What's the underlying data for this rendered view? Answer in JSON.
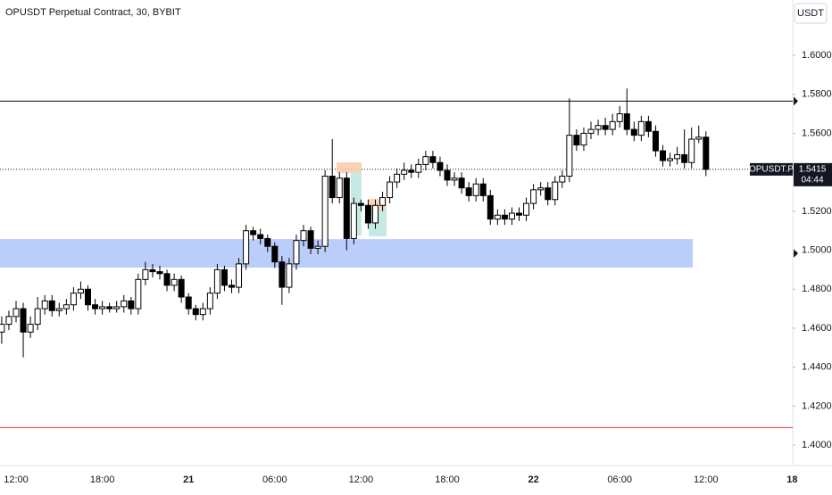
{
  "chart_data": {
    "type": "candlestick",
    "title": "OPUSDT Perpetual Contract, 30, BYBIT",
    "currency": "USDT",
    "symbol_label": "OPUSDT.P",
    "countdown": "04:44",
    "categories": [
      null,
      null,
      "12:00",
      null,
      null,
      null,
      null,
      null,
      null,
      null,
      null,
      null,
      null,
      null,
      "18:00",
      null,
      null,
      null,
      null,
      null,
      null,
      null,
      null,
      null,
      null,
      null,
      "21",
      null,
      null,
      null,
      null,
      null,
      null,
      null,
      null,
      null,
      null,
      null,
      "06:00",
      null,
      null,
      null,
      null,
      null,
      null,
      null,
      null,
      null,
      null,
      null,
      "12:00",
      null,
      null,
      null,
      null,
      null,
      null,
      null,
      null,
      null,
      null,
      null,
      "18:00",
      null,
      null,
      null,
      null,
      null,
      null,
      null,
      null,
      null,
      null,
      null,
      "22",
      null,
      null,
      null,
      null,
      null,
      null,
      null,
      null,
      null,
      null,
      null,
      "06:00",
      null,
      null,
      null,
      null,
      null,
      null,
      null,
      null,
      null,
      null,
      null,
      "12:00",
      null,
      null,
      null,
      null,
      null,
      null,
      null,
      null,
      null,
      null,
      null,
      "18"
    ],
    "open": [
      1.458,
      1.462,
      1.466,
      1.47,
      1.458,
      1.462,
      1.47,
      1.474,
      1.469,
      1.47,
      1.472,
      1.478,
      1.48,
      1.472,
      1.47,
      1.471,
      1.47,
      1.471,
      1.474,
      1.47,
      1.485,
      1.49,
      1.489,
      1.488,
      1.482,
      1.485,
      1.476,
      1.47,
      1.467,
      1.47,
      1.478,
      1.49,
      1.482,
      1.481,
      1.493,
      1.51,
      1.508,
      1.506,
      1.502,
      1.494,
      1.481,
      1.493,
      1.505,
      1.51,
      1.501,
      1.502,
      1.538,
      1.527,
      1.537,
      1.506,
      1.524,
      1.523,
      1.514,
      1.523,
      1.527,
      1.535,
      1.539,
      1.541,
      1.54,
      1.544,
      1.548,
      1.545,
      1.541,
      1.536,
      1.537,
      1.532,
      1.528,
      1.534,
      1.528,
      1.516,
      1.518,
      1.516,
      1.519,
      1.518,
      1.524,
      1.531,
      1.532,
      1.526,
      1.535,
      1.538,
      1.559,
      1.554,
      1.56,
      1.562,
      1.564,
      1.562,
      1.566,
      1.57,
      1.562,
      1.559,
      1.566,
      1.561,
      1.551,
      1.546,
      1.547,
      1.549,
      1.545,
      1.557,
      1.558,
      null,
      null,
      null,
      null,
      null,
      null,
      null,
      null,
      null,
      null,
      null,
      null
    ],
    "high": [
      1.466,
      1.469,
      1.474,
      1.473,
      1.466,
      1.476,
      1.477,
      1.477,
      1.473,
      1.475,
      1.481,
      1.484,
      1.482,
      1.475,
      1.474,
      1.473,
      1.474,
      1.477,
      1.476,
      1.488,
      1.494,
      1.493,
      1.492,
      1.49,
      1.488,
      1.487,
      1.478,
      1.472,
      1.473,
      1.481,
      1.493,
      1.492,
      1.485,
      1.496,
      1.513,
      1.512,
      1.511,
      1.508,
      1.504,
      1.497,
      1.496,
      1.508,
      1.513,
      1.512,
      1.505,
      1.541,
      1.557,
      1.54,
      1.54,
      1.527,
      1.526,
      1.526,
      1.526,
      1.53,
      1.538,
      1.542,
      1.545,
      1.544,
      1.547,
      1.551,
      1.551,
      1.548,
      1.544,
      1.54,
      1.54,
      1.535,
      1.537,
      1.537,
      1.531,
      1.521,
      1.521,
      1.522,
      1.522,
      1.527,
      1.534,
      1.535,
      1.535,
      1.538,
      1.541,
      1.578,
      1.562,
      1.563,
      1.566,
      1.567,
      1.568,
      1.57,
      1.574,
      1.583,
      1.566,
      1.569,
      1.569,
      1.564,
      1.554,
      1.55,
      1.553,
      1.562,
      1.563,
      1.564,
      1.561,
      null,
      null,
      null,
      null,
      null,
      null,
      null,
      null,
      null,
      null,
      null,
      null
    ],
    "low": [
      1.452,
      1.459,
      1.463,
      1.445,
      1.455,
      1.459,
      1.467,
      1.466,
      1.466,
      1.467,
      1.469,
      1.475,
      1.469,
      1.467,
      1.467,
      1.468,
      1.468,
      1.468,
      1.467,
      1.467,
      1.482,
      1.486,
      1.485,
      1.479,
      1.479,
      1.473,
      1.467,
      1.464,
      1.464,
      1.467,
      1.475,
      1.479,
      1.478,
      1.478,
      1.49,
      1.505,
      1.503,
      1.499,
      1.491,
      1.472,
      1.478,
      1.49,
      1.502,
      1.498,
      1.498,
      1.499,
      1.524,
      1.524,
      1.5,
      1.503,
      1.52,
      1.511,
      1.511,
      1.52,
      1.524,
      1.532,
      1.536,
      1.537,
      1.537,
      1.541,
      1.542,
      1.538,
      1.533,
      1.533,
      1.529,
      1.525,
      1.525,
      1.525,
      1.513,
      1.513,
      1.513,
      1.513,
      1.515,
      1.515,
      1.521,
      1.528,
      1.523,
      1.523,
      1.532,
      1.535,
      1.551,
      1.551,
      1.557,
      1.559,
      1.559,
      1.559,
      1.563,
      1.559,
      1.556,
      1.556,
      1.558,
      1.548,
      1.543,
      1.543,
      1.544,
      1.542,
      1.542,
      1.555,
      1.538,
      null,
      null,
      null,
      null,
      null,
      null,
      null,
      null,
      null,
      null,
      null,
      null
    ],
    "close": [
      1.462,
      1.466,
      1.47,
      1.458,
      1.462,
      1.47,
      1.474,
      1.469,
      1.47,
      1.472,
      1.478,
      1.48,
      1.472,
      1.47,
      1.471,
      1.47,
      1.471,
      1.474,
      1.47,
      1.485,
      1.49,
      1.489,
      1.488,
      1.482,
      1.485,
      1.476,
      1.47,
      1.467,
      1.47,
      1.478,
      1.49,
      1.482,
      1.481,
      1.493,
      1.51,
      1.508,
      1.506,
      1.502,
      1.494,
      1.481,
      1.493,
      1.505,
      1.51,
      1.501,
      1.502,
      1.538,
      1.527,
      1.537,
      1.506,
      1.524,
      1.523,
      1.514,
      1.523,
      1.527,
      1.535,
      1.539,
      1.541,
      1.54,
      1.544,
      1.548,
      1.545,
      1.541,
      1.536,
      1.537,
      1.532,
      1.528,
      1.534,
      1.528,
      1.516,
      1.518,
      1.516,
      1.519,
      1.518,
      1.524,
      1.531,
      1.532,
      1.526,
      1.535,
      1.538,
      1.559,
      1.554,
      1.56,
      1.562,
      1.564,
      1.562,
      1.566,
      1.57,
      1.562,
      1.559,
      1.566,
      1.561,
      1.551,
      1.546,
      1.547,
      1.549,
      1.545,
      1.557,
      1.558,
      1.5415,
      null,
      null,
      null,
      null,
      null,
      null,
      null,
      null,
      null,
      null,
      null,
      null
    ],
    "up_color": "#ffffff",
    "down_color": "#000000",
    "ylim": [
      1.3895,
      1.6284
    ],
    "yticks": [
      {
        "value": 1.4,
        "label": "1.4000"
      },
      {
        "value": 1.42,
        "label": "1.4200"
      },
      {
        "value": 1.44,
        "label": "1.4400"
      },
      {
        "value": 1.46,
        "label": "1.4600"
      },
      {
        "value": 1.48,
        "label": "1.4800"
      },
      {
        "value": 1.5,
        "label": "1.5000"
      },
      {
        "value": 1.52,
        "label": "1.5200"
      },
      {
        "value": 1.54,
        "label": "1.5400"
      },
      {
        "value": 1.56,
        "label": "1.5600"
      },
      {
        "value": 1.58,
        "label": "1.5800"
      },
      {
        "value": 1.6,
        "label": "1.6000"
      }
    ],
    "levels": [
      {
        "value": 1.5765,
        "color": "#000000"
      },
      {
        "value": 1.409,
        "color": "#f23645"
      }
    ],
    "zone": {
      "low": 1.4911,
      "high": 1.5057,
      "color": "#bbcdfb"
    }
  }
}
